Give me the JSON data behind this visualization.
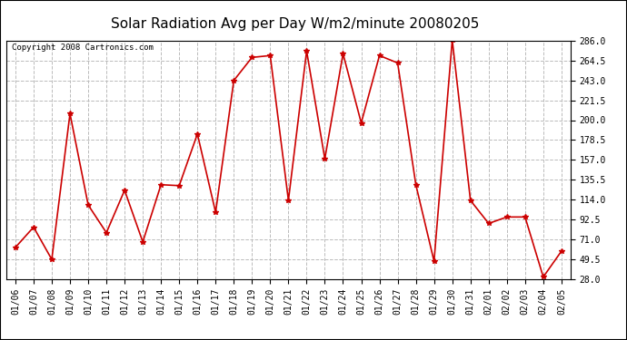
{
  "title": "Solar Radiation Avg per Day W/m2/minute 20080205",
  "copyright": "Copyright 2008 Cartronics.com",
  "dates": [
    "01/06",
    "01/07",
    "01/08",
    "01/09",
    "01/10",
    "01/11",
    "01/12",
    "01/13",
    "01/14",
    "01/15",
    "01/16",
    "01/17",
    "01/18",
    "01/19",
    "01/20",
    "01/21",
    "01/22",
    "01/23",
    "01/24",
    "01/25",
    "01/26",
    "01/27",
    "01/28",
    "01/29",
    "01/30",
    "01/31",
    "02/01",
    "02/02",
    "02/03",
    "02/04",
    "02/05"
  ],
  "values": [
    62,
    84,
    49,
    207,
    108,
    78,
    124,
    68,
    130,
    129,
    185,
    100,
    243,
    268,
    270,
    113,
    275,
    158,
    272,
    197,
    270,
    262,
    130,
    47,
    287,
    113,
    88,
    95,
    95,
    30,
    58
  ],
  "line_color": "#cc0000",
  "marker": "*",
  "marker_size": 4,
  "background_color": "#ffffff",
  "plot_bg_color": "#ffffff",
  "grid_color": "#bbbbbb",
  "grid_style": "--",
  "ylim": [
    28.0,
    286.0
  ],
  "yticks": [
    28.0,
    49.5,
    71.0,
    92.5,
    114.0,
    135.5,
    157.0,
    178.5,
    200.0,
    221.5,
    243.0,
    264.5,
    286.0
  ],
  "title_fontsize": 11,
  "tick_fontsize": 7,
  "copyright_fontsize": 6.5,
  "border_color": "#000000"
}
